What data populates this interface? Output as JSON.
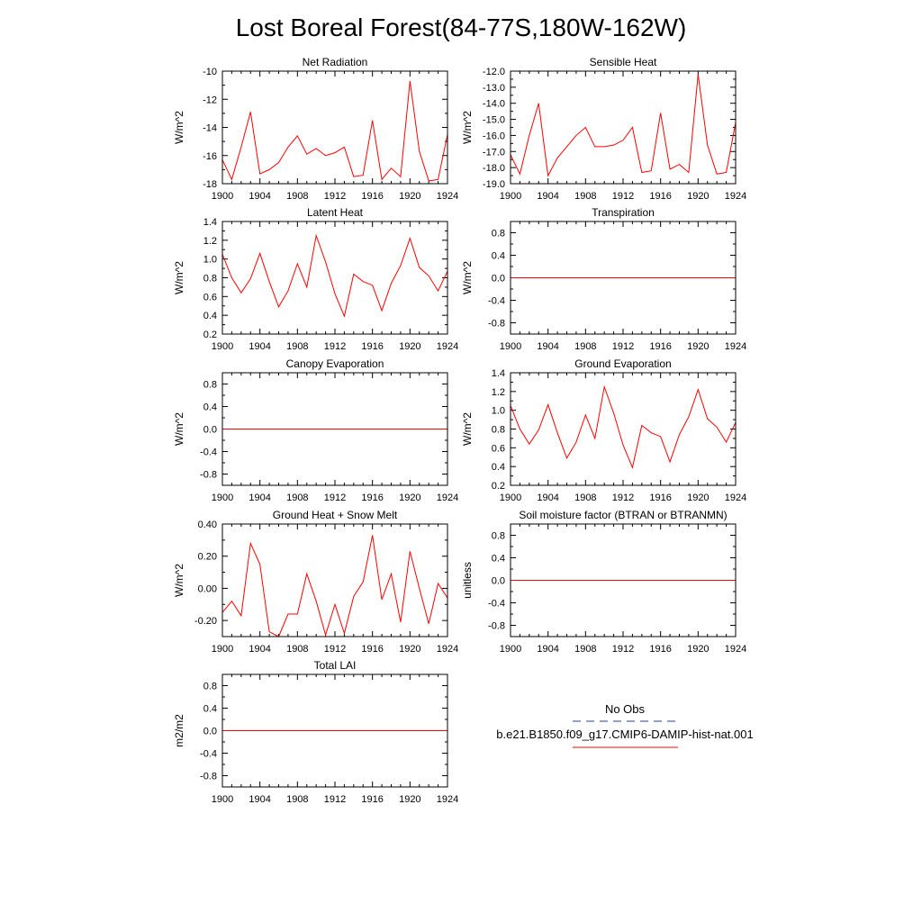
{
  "title": "Lost Boreal Forest(84-77S,180W-162W)",
  "legend": {
    "placement": "bottom-right",
    "obs_label": "No Obs",
    "obs_color": "#2a3f8f",
    "model_label": "b.e21.B1850.f09_g17.CMIP6-DAMIP-hist-nat.001",
    "model_color": "#ff0000"
  },
  "line_color": "#ff0000",
  "chart_data": [
    {
      "type": "line",
      "title": "Net Radiation",
      "ylabel": "W/m^2",
      "xlim": [
        1900,
        1924
      ],
      "ylim": [
        -18,
        -10
      ],
      "xticks": [
        "1900",
        "1904",
        "1908",
        "1912",
        "1916",
        "1920",
        "1924"
      ],
      "yticks": [
        "-18",
        "-16",
        "-14",
        "-12",
        "-10"
      ],
      "x": [
        1900,
        1901,
        1902,
        1903,
        1904,
        1905,
        1906,
        1907,
        1908,
        1909,
        1910,
        1911,
        1912,
        1913,
        1914,
        1915,
        1916,
        1917,
        1918,
        1919,
        1920,
        1921,
        1922,
        1923,
        1924
      ],
      "series": [
        {
          "values": [
            -16.3,
            -17.7,
            -15.4,
            -12.9,
            -17.3,
            -17.0,
            -16.5,
            -15.4,
            -14.6,
            -15.9,
            -15.5,
            -16.0,
            -15.8,
            -15.4,
            -17.5,
            -17.4,
            -13.5,
            -17.7,
            -16.9,
            -17.5,
            -10.7,
            -15.7,
            -17.8,
            -17.7,
            -14.5
          ]
        }
      ]
    },
    {
      "type": "line",
      "title": "Sensible Heat",
      "ylabel": "W/m^2",
      "xlim": [
        1900,
        1924
      ],
      "ylim": [
        -19,
        -12
      ],
      "xticks": [
        "1900",
        "1904",
        "1908",
        "1912",
        "1916",
        "1920",
        "1924"
      ],
      "yticks": [
        "-19.0",
        "-18.0",
        "-17.0",
        "-16.0",
        "-15.0",
        "-14.0",
        "-13.0",
        "-12.0"
      ],
      "x": [
        1900,
        1901,
        1902,
        1903,
        1904,
        1905,
        1906,
        1907,
        1908,
        1909,
        1910,
        1911,
        1912,
        1913,
        1914,
        1915,
        1916,
        1917,
        1918,
        1919,
        1920,
        1921,
        1922,
        1923,
        1924
      ],
      "series": [
        {
          "values": [
            -17.2,
            -18.4,
            -16.0,
            -14.0,
            -18.5,
            -17.4,
            -16.7,
            -16.0,
            -15.5,
            -16.7,
            -16.7,
            -16.6,
            -16.3,
            -15.5,
            -18.3,
            -18.2,
            -14.6,
            -18.1,
            -17.8,
            -18.3,
            -12.2,
            -16.6,
            -18.4,
            -18.3,
            -15.2
          ]
        }
      ]
    },
    {
      "type": "line",
      "title": "Latent Heat",
      "ylabel": "W/m^2",
      "xlim": [
        1900,
        1924
      ],
      "ylim": [
        0.2,
        1.4
      ],
      "xticks": [
        "1900",
        "1904",
        "1908",
        "1912",
        "1916",
        "1920",
        "1924"
      ],
      "yticks": [
        "0.2",
        "0.4",
        "0.6",
        "0.8",
        "1.0",
        "1.2",
        "1.4"
      ],
      "x": [
        1900,
        1901,
        1902,
        1903,
        1904,
        1905,
        1906,
        1907,
        1908,
        1909,
        1910,
        1911,
        1912,
        1913,
        1914,
        1915,
        1916,
        1917,
        1918,
        1919,
        1920,
        1921,
        1922,
        1923,
        1924
      ],
      "series": [
        {
          "values": [
            1.05,
            0.8,
            0.64,
            0.79,
            1.06,
            0.76,
            0.49,
            0.66,
            0.95,
            0.7,
            1.25,
            0.97,
            0.63,
            0.39,
            0.84,
            0.76,
            0.72,
            0.45,
            0.74,
            0.93,
            1.22,
            0.91,
            0.82,
            0.66,
            0.87
          ]
        }
      ]
    },
    {
      "type": "line",
      "title": "Transpiration",
      "ylabel": "W/m^2",
      "xlim": [
        1900,
        1924
      ],
      "ylim": [
        -1.0,
        1.0
      ],
      "xticks": [
        "1900",
        "1904",
        "1908",
        "1912",
        "1916",
        "1920",
        "1924"
      ],
      "yticks": [
        "-0.8",
        "-0.4",
        "0.0",
        "0.4",
        "0.8"
      ],
      "x": [
        1900,
        1924
      ],
      "series": [
        {
          "values": [
            0.0,
            0.0
          ]
        }
      ]
    },
    {
      "type": "line",
      "title": "Canopy Evaporation",
      "ylabel": "W/m^2",
      "xlim": [
        1900,
        1924
      ],
      "ylim": [
        -1.0,
        1.0
      ],
      "xticks": [
        "1900",
        "1904",
        "1908",
        "1912",
        "1916",
        "1920",
        "1924"
      ],
      "yticks": [
        "-0.8",
        "-0.4",
        "0.0",
        "0.4",
        "0.8"
      ],
      "x": [
        1900,
        1924
      ],
      "series": [
        {
          "values": [
            0.0,
            0.0
          ]
        }
      ]
    },
    {
      "type": "line",
      "title": "Ground Evaporation",
      "ylabel": "W/m^2",
      "xlim": [
        1900,
        1924
      ],
      "ylim": [
        0.2,
        1.4
      ],
      "xticks": [
        "1900",
        "1904",
        "1908",
        "1912",
        "1916",
        "1920",
        "1924"
      ],
      "yticks": [
        "0.2",
        "0.4",
        "0.6",
        "0.8",
        "1.0",
        "1.2",
        "1.4"
      ],
      "x": [
        1900,
        1901,
        1902,
        1903,
        1904,
        1905,
        1906,
        1907,
        1908,
        1909,
        1910,
        1911,
        1912,
        1913,
        1914,
        1915,
        1916,
        1917,
        1918,
        1919,
        1920,
        1921,
        1922,
        1923,
        1924
      ],
      "series": [
        {
          "values": [
            1.05,
            0.8,
            0.64,
            0.79,
            1.06,
            0.76,
            0.49,
            0.66,
            0.95,
            0.7,
            1.25,
            0.97,
            0.63,
            0.39,
            0.84,
            0.76,
            0.72,
            0.45,
            0.74,
            0.93,
            1.22,
            0.91,
            0.82,
            0.66,
            0.87
          ]
        }
      ]
    },
    {
      "type": "line",
      "title": "Ground Heat + Snow Melt",
      "ylabel": "W/m^2",
      "xlim": [
        1900,
        1924
      ],
      "ylim": [
        -0.3,
        0.4
      ],
      "xticks": [
        "1900",
        "1904",
        "1908",
        "1912",
        "1916",
        "1920",
        "1924"
      ],
      "yticks": [
        "-0.20",
        "0.00",
        "0.20",
        "0.40"
      ],
      "x": [
        1900,
        1901,
        1902,
        1903,
        1904,
        1905,
        1906,
        1907,
        1908,
        1909,
        1910,
        1911,
        1912,
        1913,
        1914,
        1915,
        1916,
        1917,
        1918,
        1919,
        1920,
        1921,
        1922,
        1923,
        1924
      ],
      "series": [
        {
          "values": [
            -0.15,
            -0.08,
            -0.17,
            0.28,
            0.15,
            -0.27,
            -0.3,
            -0.16,
            -0.16,
            0.09,
            -0.08,
            -0.29,
            -0.1,
            -0.28,
            -0.05,
            0.04,
            0.33,
            -0.07,
            0.09,
            -0.21,
            0.23,
            0.0,
            -0.22,
            0.03,
            -0.06
          ]
        }
      ]
    },
    {
      "type": "line",
      "title": "Soil moisture factor (BTRAN or BTRANMN)",
      "ylabel": "unitless",
      "xlim": [
        1900,
        1924
      ],
      "ylim": [
        -1.0,
        1.0
      ],
      "xticks": [
        "1900",
        "1904",
        "1908",
        "1912",
        "1916",
        "1920",
        "1924"
      ],
      "yticks": [
        "-0.8",
        "-0.4",
        "0.0",
        "0.4",
        "0.8"
      ],
      "x": [
        1900,
        1924
      ],
      "series": [
        {
          "values": [
            0.0,
            0.0
          ]
        }
      ]
    },
    {
      "type": "line",
      "title": "Total LAI",
      "ylabel": "m2/m2",
      "xlim": [
        1900,
        1924
      ],
      "ylim": [
        -1.0,
        1.0
      ],
      "xticks": [
        "1900",
        "1904",
        "1908",
        "1912",
        "1916",
        "1920",
        "1924"
      ],
      "yticks": [
        "-0.8",
        "-0.4",
        "0.0",
        "0.4",
        "0.8"
      ],
      "x": [
        1900,
        1924
      ],
      "series": [
        {
          "values": [
            0.0,
            0.0
          ]
        }
      ]
    }
  ]
}
